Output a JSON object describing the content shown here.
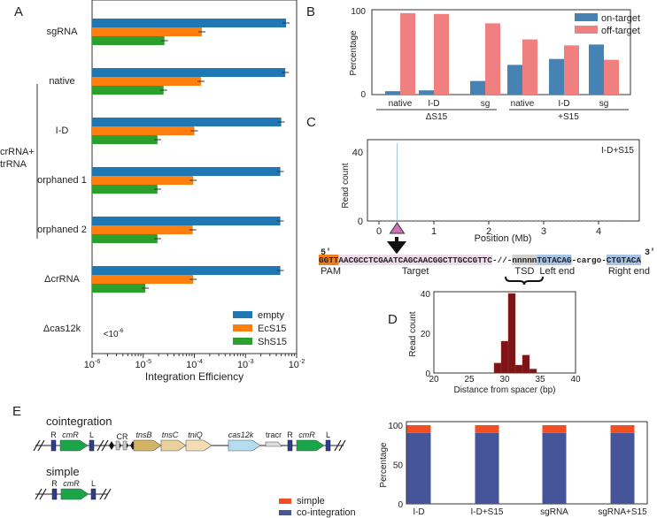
{
  "panel_labels": {
    "a": "A",
    "b": "B",
    "c": "C",
    "d": "D",
    "e": "E"
  },
  "colors": {
    "empty": "#1f77b4",
    "EcS15": "#ff7f0e",
    "ShS15": "#2ca02c",
    "on": "#4682b4",
    "off": "#f08080",
    "hist": "#7f1416",
    "simple": "#f04e23",
    "coint": "#46549a"
  },
  "chart_data": [
    {
      "id": "A",
      "type": "bar",
      "orientation": "horizontal",
      "xscale": "log",
      "xlabel": "Integration Efficiency",
      "xlim": [
        1e-06,
        0.01
      ],
      "xticks": [
        {
          "base": "10",
          "exp": "-6"
        },
        {
          "base": "10",
          "exp": "-5"
        },
        {
          "base": "10",
          "exp": "-4"
        },
        {
          "base": "10",
          "exp": "-3"
        },
        {
          "base": "10",
          "exp": "-2"
        }
      ],
      "categories": [
        "sgRNA",
        "native",
        "I-D",
        "orphaned 1",
        "orphaned 2",
        "ΔcrRNA",
        "Δcas12k"
      ],
      "group_bracket_label": [
        "crRNA+",
        "trRNA"
      ],
      "series": [
        {
          "name": "empty",
          "values": [
            0.0062,
            0.006,
            0.005,
            0.0048,
            0.0048,
            0.0048,
            null
          ]
        },
        {
          "name": "EcS15",
          "values": [
            0.00014,
            0.000135,
            0.0001,
            9.5e-05,
            9.3e-05,
            9.5e-05,
            null
          ]
        },
        {
          "name": "ShS15",
          "values": [
            2.6e-05,
            2.5e-05,
            1.9e-05,
            1.9e-05,
            1.9e-05,
            1.1e-05,
            null
          ]
        }
      ],
      "annotation": {
        "base": "<10",
        "exp": "-6"
      },
      "legend": "bottom-right"
    },
    {
      "id": "B",
      "type": "bar",
      "ylabel": "Percentage",
      "ylim": [
        0,
        100
      ],
      "yticks": [
        "0",
        "100"
      ],
      "categories": [
        "native",
        "I-D",
        "sg",
        "native",
        "I-D",
        "sg"
      ],
      "groups": [
        "ΔS15",
        "+S15"
      ],
      "series": [
        {
          "name": "on-target",
          "values": [
            4,
            5,
            16,
            35,
            42,
            59
          ]
        },
        {
          "name": "off-target",
          "values": [
            96,
            95,
            84,
            65,
            58,
            41
          ]
        }
      ],
      "legend": "top-right"
    },
    {
      "id": "C",
      "type": "line",
      "title": "I-D+S15",
      "xlabel": "Position (Mb)",
      "ylabel": "Read count",
      "xlim": [
        -0.2,
        4.6
      ],
      "ylim": [
        0,
        45
      ],
      "xticks": [
        "0",
        "1",
        "2",
        "3",
        "4"
      ],
      "yticks": [
        "0",
        "40"
      ],
      "peak": {
        "x": 0.33,
        "y": 43
      },
      "sequence": {
        "five": "5′",
        "three": "3′",
        "pam": "GGTT",
        "target": "AACGCCTCGAATCAGCAACGGCTTGCCGTTC",
        "gap": "-//-",
        "tsd": "nnnnn",
        "left": "TGTACAG",
        "cargo": "-cargo-",
        "right": "CTGTACA",
        "labels": {
          "pam": "PAM",
          "target": "Target",
          "tsd": "TSD",
          "left": "Left end",
          "right": "Right end"
        }
      }
    },
    {
      "id": "D",
      "type": "bar",
      "xlabel": "Distance from spacer (bp)",
      "ylabel": "Read count",
      "xlim": [
        20,
        40
      ],
      "ylim": [
        0,
        40
      ],
      "xticks": [
        "20",
        "25",
        "30",
        "35",
        "40"
      ],
      "yticks": [
        "0",
        "20",
        "40"
      ],
      "x": [
        29,
        30,
        31,
        32,
        33,
        34
      ],
      "values": [
        5,
        16,
        40,
        4,
        9,
        2
      ]
    },
    {
      "id": "E",
      "type": "bar",
      "stacked": true,
      "ylabel": "Percentage",
      "ylim": [
        0,
        100
      ],
      "yticks": [
        "0",
        "50",
        "100"
      ],
      "categories": [
        "I-D",
        "I-D+S15",
        "sgRNA",
        "sgRNA+S15"
      ],
      "series": [
        {
          "name": "co-integration",
          "values": [
            90,
            90,
            90,
            90
          ]
        },
        {
          "name": "simple",
          "values": [
            10,
            10,
            10,
            10
          ]
        }
      ],
      "legend": [
        "simple",
        "co-integration"
      ]
    }
  ],
  "diagram": {
    "cointegration_title": "cointegration",
    "simple_title": "simple",
    "genes": {
      "R": "R",
      "L": "L",
      "cmR": "cmR",
      "CR": "CR",
      "tnsB": "tnsB",
      "tnsC": "tnsC",
      "tniQ": "tniQ",
      "cas12k": "cas12k",
      "tracr": "tracr"
    }
  }
}
